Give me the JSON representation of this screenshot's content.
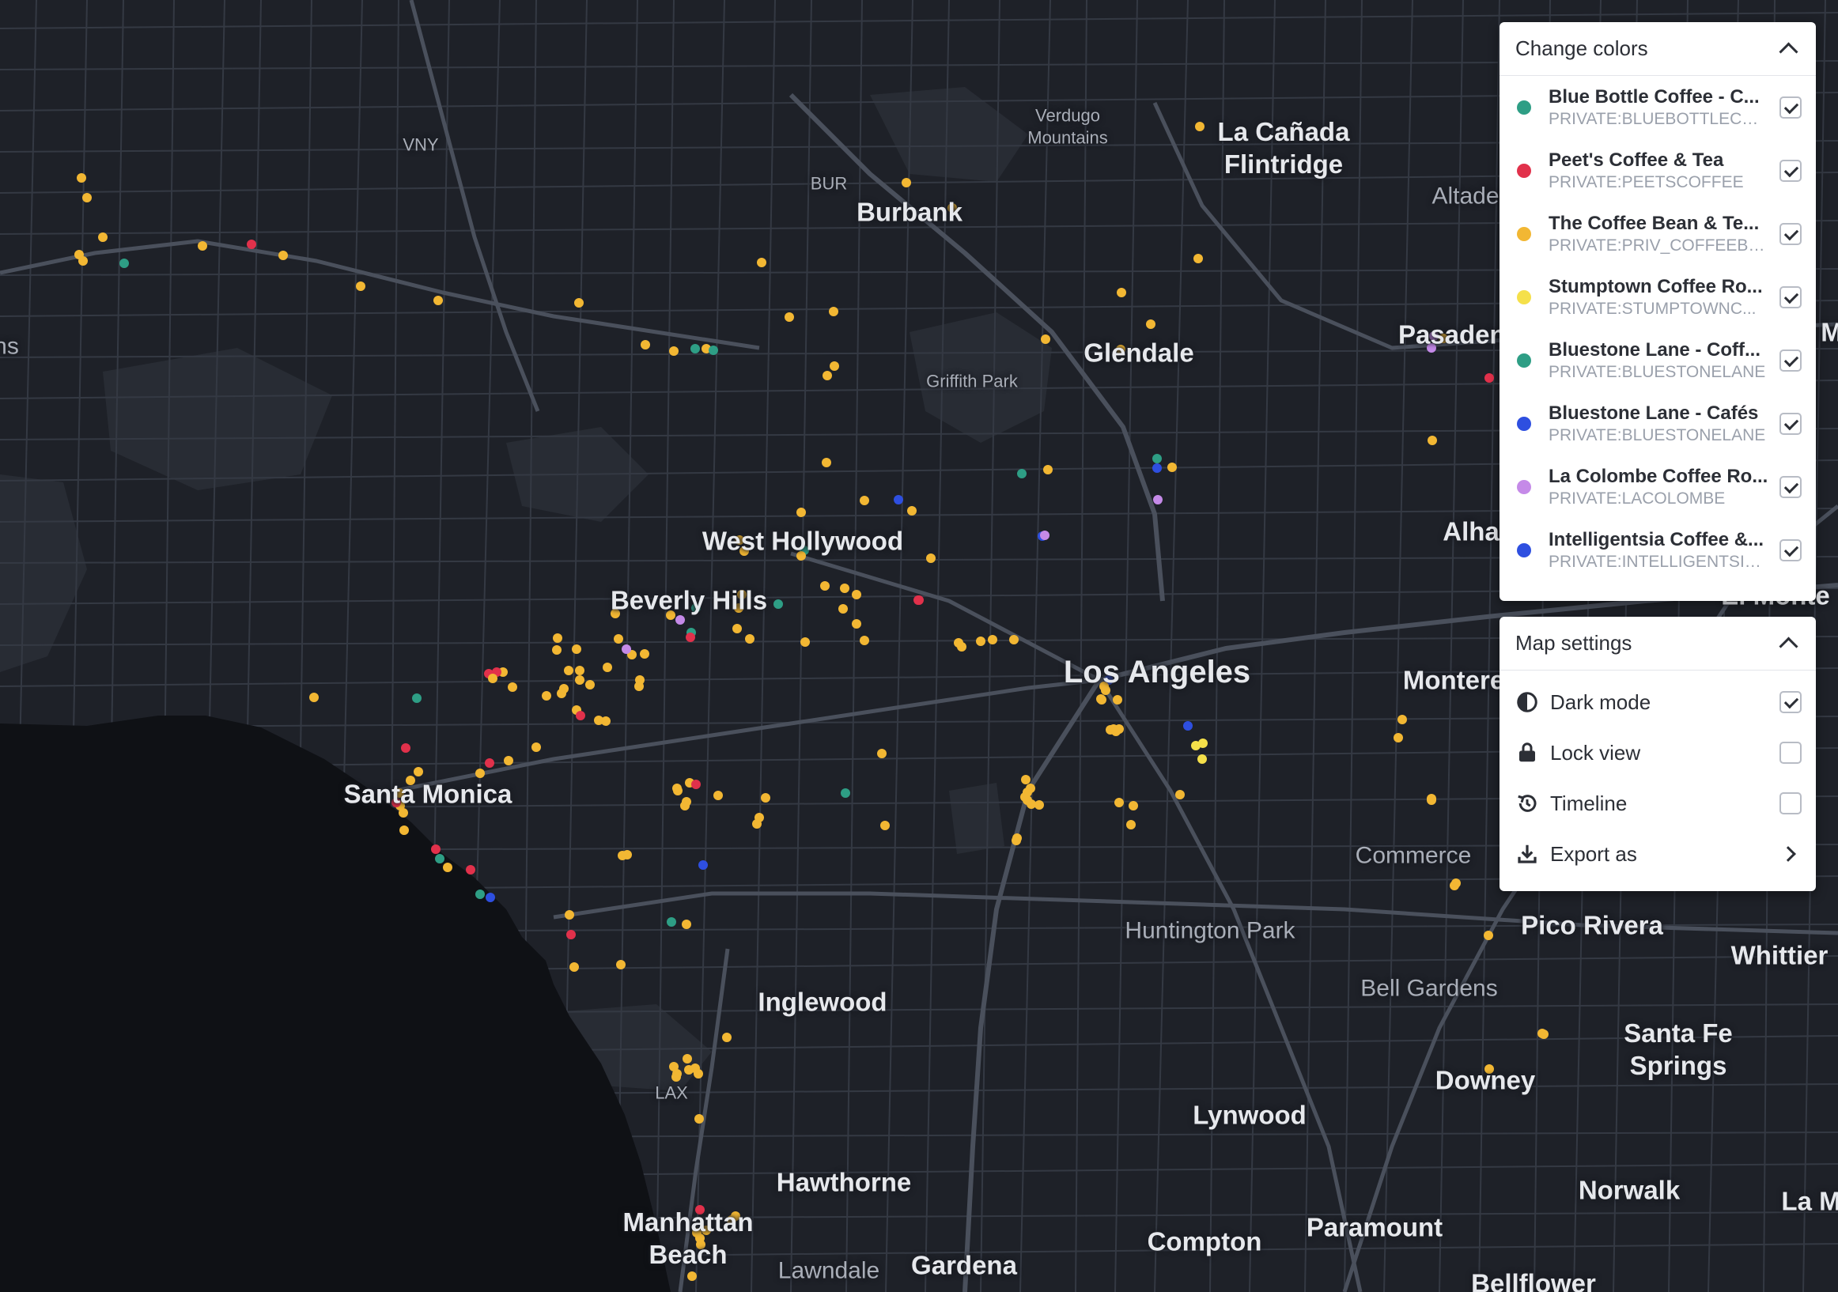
{
  "map_labels": [
    {
      "text": "VNY",
      "tier": "tiny"
    },
    {
      "text": "BUR",
      "tier": "tiny"
    },
    {
      "text": "Verdugo\nMountains",
      "tier": "tiny"
    },
    {
      "text": "Burbank",
      "tier": "mid"
    },
    {
      "text": "La Cañada\nFlintridge",
      "tier": "mid"
    },
    {
      "text": "Altade",
      "tier": "minor"
    },
    {
      "text": "Pasadena",
      "tier": "mid"
    },
    {
      "text": "Glendale",
      "tier": "mid"
    },
    {
      "text": "Griffith Park",
      "tier": "tiny"
    },
    {
      "text": "West Hollywood",
      "tier": "mid"
    },
    {
      "text": "Beverly Hills",
      "tier": "mid"
    },
    {
      "text": "Los Angeles",
      "tier": "major"
    },
    {
      "text": "Alha",
      "tier": "mid"
    },
    {
      "text": "El Monte",
      "tier": "mid"
    },
    {
      "text": "Montere",
      "tier": "mid"
    },
    {
      "text": "Santa Monica",
      "tier": "mid"
    },
    {
      "text": "Commerce",
      "tier": "minor"
    },
    {
      "text": "Huntington Park",
      "tier": "minor"
    },
    {
      "text": "Pico Rivera",
      "tier": "mid"
    },
    {
      "text": "Whittier",
      "tier": "mid"
    },
    {
      "text": "Bell Gardens",
      "tier": "minor"
    },
    {
      "text": "Inglewood",
      "tier": "mid"
    },
    {
      "text": "Santa Fe\nSprings",
      "tier": "mid"
    },
    {
      "text": "Downey",
      "tier": "mid"
    },
    {
      "text": "LAX",
      "tier": "tiny"
    },
    {
      "text": "Lynwood",
      "tier": "mid"
    },
    {
      "text": "Hawthorne",
      "tier": "mid"
    },
    {
      "text": "Norwalk",
      "tier": "mid"
    },
    {
      "text": "La M",
      "tier": "mid"
    },
    {
      "text": "Manhattan\nBeach",
      "tier": "mid"
    },
    {
      "text": "Compton",
      "tier": "mid"
    },
    {
      "text": "Paramount",
      "tier": "mid"
    },
    {
      "text": "Lawndale",
      "tier": "minor"
    },
    {
      "text": "Gardena",
      "tier": "mid"
    },
    {
      "text": "Bellflower",
      "tier": "mid"
    },
    {
      "text": "ns",
      "tier": "minor"
    },
    {
      "text": "M",
      "tier": "mid"
    }
  ],
  "colors_panel": {
    "title": "Change colors",
    "layers": [
      {
        "name": "Blue Bottle Coffee - C...",
        "source": "PRIVATE:BLUEBOTTLECO...",
        "color": "#2e9e85",
        "checked": true
      },
      {
        "name": "Peet's Coffee & Tea",
        "source": "PRIVATE:PEETSCOFFEE",
        "color": "#e1314b",
        "checked": true
      },
      {
        "name": "The Coffee Bean & Te...",
        "source": "PRIVATE:PRIV_COFFEEBE...",
        "color": "#f2b733",
        "checked": true
      },
      {
        "name": "Stumptown Coffee Ro...",
        "source": "PRIVATE:STUMPTOWNC...",
        "color": "#f5e04a",
        "checked": true
      },
      {
        "name": "Bluestone Lane - Coff...",
        "source": "PRIVATE:BLUESTONELANE",
        "color": "#2e9e85",
        "checked": true
      },
      {
        "name": "Bluestone Lane - Cafés",
        "source": "PRIVATE:BLUESTONELANE",
        "color": "#2e4fe0",
        "checked": true
      },
      {
        "name": "La Colombe Coffee Ro...",
        "source": "PRIVATE:LACOLOMBE",
        "color": "#c58ae8",
        "checked": true
      },
      {
        "name": "Intelligentsia Coffee &...",
        "source": "PRIVATE:INTELLIGENTSIA...",
        "color": "#2e4fe0",
        "checked": true
      }
    ]
  },
  "settings_panel": {
    "title": "Map settings",
    "items": [
      {
        "label": "Dark mode",
        "icon": "contrast-icon",
        "control": "checkbox",
        "checked": true
      },
      {
        "label": "Lock view",
        "icon": "lock-icon",
        "control": "checkbox",
        "checked": false
      },
      {
        "label": "Timeline",
        "icon": "history-icon",
        "control": "checkbox",
        "checked": false
      },
      {
        "label": "Export as",
        "icon": "download-icon",
        "control": "chevron"
      }
    ]
  },
  "colors": {
    "land": "#1e2128",
    "water": "#0f1115",
    "park": "#2c3038",
    "road_major": "#4a505c",
    "road_minor": "#343943"
  }
}
